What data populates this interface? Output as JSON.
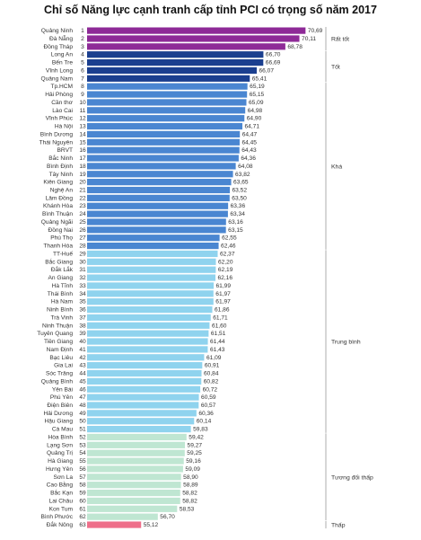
{
  "chart_data": {
    "type": "bar",
    "orientation": "horizontal",
    "title": "Chỉ số Năng lực cạnh tranh cấp tỉnh PCI có trọng số năm 2017",
    "xlabel": "",
    "ylabel": "",
    "xlim": [
      50,
      71
    ],
    "grid": false,
    "legend": "none",
    "categories": [
      "Quảng Ninh",
      "Đà Nẵng",
      "Đồng Tháp",
      "Long An",
      "Bến Tre",
      "Vĩnh Long",
      "Quảng Nam",
      "Tp.HCM",
      "Hải Phòng",
      "Cần thơ",
      "Lào Cai",
      "Vĩnh Phúc",
      "Hà Nội",
      "Bình Dương",
      "Thái Nguyên",
      "BRVT",
      "Bắc Ninh",
      "Bình Định",
      "Tây Ninh",
      "Kiên Giang",
      "Nghệ An",
      "Lâm Đồng",
      "Khánh Hòa",
      "Bình Thuận",
      "Quảng Ngãi",
      "Đồng Nai",
      "Phú Thọ",
      "Thanh Hóa",
      "TT-Huế",
      "Bắc Giang",
      "Đắk Lắk",
      "An Giang",
      "Hà Tĩnh",
      "Thái Bình",
      "Hà Nam",
      "Ninh Bình",
      "Trà Vinh",
      "Ninh Thuận",
      "Tuyên Quang",
      "Tiền Giang",
      "Nam Định",
      "Bạc Liêu",
      "Gia Lai",
      "Sóc Trăng",
      "Quảng Bình",
      "Yên Bái",
      "Phú Yên",
      "Điện Biên",
      "Hải Dương",
      "Hậu Giang",
      "Cà Mau",
      "Hòa Bình",
      "Lạng Sơn",
      "Quảng Trị",
      "Hà Giang",
      "Hưng Yên",
      "Sơn La",
      "Cao Bằng",
      "Bắc Kạn",
      "Lai Châu",
      "Kon Tum",
      "Bình Phước",
      "Đắk Nông"
    ],
    "ranks": [
      "1",
      "2",
      "3",
      "4",
      "5",
      "6",
      "7",
      "8",
      "9",
      "10",
      "11",
      "12",
      "13",
      "14",
      "15",
      "16",
      "17",
      "18",
      "19",
      "20",
      "21",
      "22",
      "23",
      "24",
      "25",
      "26",
      "27",
      "28",
      "29",
      "30",
      "31",
      "32",
      "33",
      "34",
      "35",
      "36",
      "37",
      "38",
      "39",
      "40",
      "41",
      "42",
      "43",
      "44",
      "45",
      "46",
      "47",
      "48",
      "49",
      "50",
      "51",
      "52",
      "53",
      "54",
      "55",
      "56",
      "57",
      "58",
      "59",
      "60",
      "61",
      "62",
      "63"
    ],
    "values": [
      70.69,
      70.11,
      68.78,
      66.7,
      66.69,
      66.07,
      65.41,
      65.19,
      65.15,
      65.09,
      64.98,
      64.9,
      64.71,
      64.47,
      64.45,
      64.43,
      64.36,
      64.08,
      63.82,
      63.65,
      63.52,
      63.5,
      63.36,
      63.34,
      63.16,
      63.15,
      62.55,
      62.46,
      62.37,
      62.2,
      62.19,
      62.16,
      61.99,
      61.97,
      61.97,
      61.86,
      61.71,
      61.6,
      61.51,
      61.44,
      61.43,
      61.09,
      60.91,
      60.84,
      60.82,
      60.72,
      60.59,
      60.57,
      60.36,
      60.14,
      59.83,
      59.42,
      59.27,
      59.25,
      59.16,
      59.09,
      58.9,
      58.89,
      58.82,
      58.82,
      58.53,
      56.7,
      55.12
    ],
    "value_labels": [
      "70,69",
      "70,11",
      "68,78",
      "66,70",
      "66,69",
      "66,07",
      "65,41",
      "65,19",
      "65,15",
      "65,09",
      "64,98",
      "64,90",
      "64,71",
      "64,47",
      "64,45",
      "64,43",
      "64,36",
      "64,08",
      "63,82",
      "63,65",
      "63,52",
      "63,50",
      "63,36",
      "63,34",
      "63,16",
      "63,15",
      "62,55",
      "62,46",
      "62,37",
      "62,20",
      "62,19",
      "62,16",
      "61,99",
      "61,97",
      "61,97",
      "61,86",
      "61,71",
      "61,60",
      "61,51",
      "61,44",
      "61,43",
      "61,09",
      "60,91",
      "60,84",
      "60,82",
      "60,72",
      "60,59",
      "60,57",
      "60,36",
      "60,14",
      "59,83",
      "59,42",
      "59,27",
      "59,25",
      "59,16",
      "59,09",
      "58,90",
      "58,89",
      "58,82",
      "58,82",
      "58,53",
      "56,70",
      "55,12"
    ],
    "groups": [
      {
        "name": "Rất tốt",
        "from": 0,
        "to": 2,
        "color": "#8e2a97"
      },
      {
        "name": "Tốt",
        "from": 3,
        "to": 6,
        "color": "#1b3f8f"
      },
      {
        "name": "Khá",
        "from": 7,
        "to": 27,
        "color": "#4a86d1"
      },
      {
        "name": "Trung bình",
        "from": 28,
        "to": 50,
        "color": "#8fd3ee"
      },
      {
        "name": "Tương đối thấp",
        "from": 51,
        "to": 61,
        "color": "#bfe6d2"
      },
      {
        "name": "Thấp",
        "from": 62,
        "to": 62,
        "color": "#ee6f8a"
      }
    ]
  }
}
